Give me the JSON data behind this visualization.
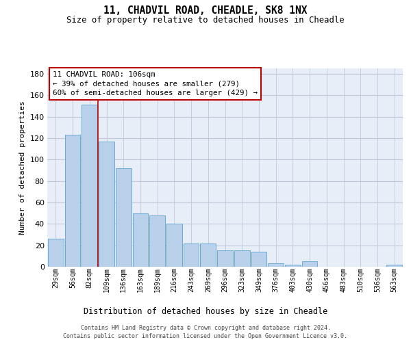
{
  "title_line1": "11, CHADVIL ROAD, CHEADLE, SK8 1NX",
  "title_line2": "Size of property relative to detached houses in Cheadle",
  "xlabel": "Distribution of detached houses by size in Cheadle",
  "ylabel": "Number of detached properties",
  "categories": [
    "29sqm",
    "56sqm",
    "82sqm",
    "109sqm",
    "136sqm",
    "163sqm",
    "189sqm",
    "216sqm",
    "243sqm",
    "269sqm",
    "296sqm",
    "323sqm",
    "349sqm",
    "376sqm",
    "403sqm",
    "430sqm",
    "456sqm",
    "483sqm",
    "510sqm",
    "536sqm",
    "563sqm"
  ],
  "values": [
    26,
    123,
    151,
    117,
    92,
    50,
    48,
    40,
    22,
    22,
    15,
    15,
    14,
    3,
    2,
    5,
    0,
    0,
    0,
    0,
    2
  ],
  "bar_color": "#b8d0ea",
  "bar_edge_color": "#6aaad4",
  "red_line_x": 2.5,
  "red_line_color": "#bb0000",
  "annotation_text": "11 CHADVIL ROAD: 106sqm\n← 39% of detached houses are smaller (279)\n60% of semi-detached houses are larger (429) →",
  "ylim_max": 185,
  "yticks": [
    0,
    20,
    40,
    60,
    80,
    100,
    120,
    140,
    160,
    180
  ],
  "plot_bg_color": "#e8eef8",
  "grid_color": "#c0c8d8",
  "footer_line1": "Contains HM Land Registry data © Crown copyright and database right 2024.",
  "footer_line2": "Contains public sector information licensed under the Open Government Licence v3.0."
}
